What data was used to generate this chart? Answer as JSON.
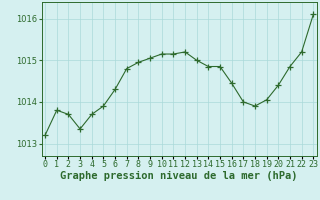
{
  "x": [
    0,
    1,
    2,
    3,
    4,
    5,
    6,
    7,
    8,
    9,
    10,
    11,
    12,
    13,
    14,
    15,
    16,
    17,
    18,
    19,
    20,
    21,
    22,
    23
  ],
  "y": [
    1013.2,
    1013.8,
    1013.7,
    1013.35,
    1013.7,
    1013.9,
    1014.3,
    1014.8,
    1014.95,
    1015.05,
    1015.15,
    1015.15,
    1015.2,
    1015.0,
    1014.85,
    1014.85,
    1014.45,
    1014.0,
    1013.9,
    1014.05,
    1014.4,
    1014.85,
    1015.2,
    1016.1
  ],
  "line_color": "#2d6a2d",
  "marker": "+",
  "marker_size": 4,
  "marker_color": "#2d6a2d",
  "bg_color": "#d5f0f0",
  "grid_color": "#aadada",
  "title": "Graphe pression niveau de la mer (hPa)",
  "title_color": "#2d6a2d",
  "title_fontsize": 7.5,
  "xlabel_ticks": [
    "0",
    "1",
    "2",
    "3",
    "4",
    "5",
    "6",
    "7",
    "8",
    "9",
    "10",
    "11",
    "12",
    "13",
    "14",
    "15",
    "16",
    "17",
    "18",
    "19",
    "20",
    "21",
    "22",
    "23"
  ],
  "yticks": [
    1013,
    1014,
    1015,
    1016
  ],
  "ylim": [
    1012.7,
    1016.4
  ],
  "xlim": [
    -0.3,
    23.3
  ],
  "tick_color": "#2d6a2d",
  "tick_fontsize": 6.0,
  "border_color": "#2d6a2d"
}
